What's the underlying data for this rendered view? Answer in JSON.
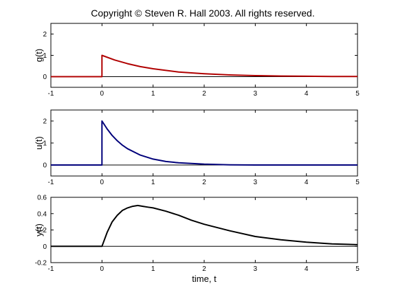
{
  "figure": {
    "title": "Copyright © Steven R. Hall 2003. All rights reserved.",
    "background": "#ffffff"
  },
  "chart_data": [
    {
      "type": "line",
      "ylabel": "g(t)",
      "xlabel": "",
      "xlim": [
        -1,
        5
      ],
      "ylim": [
        -0.5,
        2.5
      ],
      "xticks": [
        -1,
        0,
        1,
        2,
        3,
        4,
        5
      ],
      "yticks": [
        0,
        1,
        2
      ],
      "grid": false,
      "zero_line": true,
      "series": [
        {
          "color": "#b00000",
          "x": [
            -1,
            0,
            0,
            0.25,
            0.5,
            0.75,
            1,
            1.5,
            2,
            2.5,
            3,
            3.5,
            4,
            4.5,
            5
          ],
          "y": [
            0,
            0,
            1,
            0.78,
            0.61,
            0.47,
            0.37,
            0.22,
            0.14,
            0.08,
            0.05,
            0.03,
            0.02,
            0.01,
            0.01
          ]
        }
      ]
    },
    {
      "type": "line",
      "ylabel": "u(t)",
      "xlabel": "",
      "xlim": [
        -1,
        5
      ],
      "ylim": [
        -0.5,
        2.5
      ],
      "xticks": [
        -1,
        0,
        1,
        2,
        3,
        4,
        5
      ],
      "yticks": [
        0,
        1,
        2
      ],
      "grid": false,
      "zero_line": true,
      "series": [
        {
          "color": "#00007a",
          "x": [
            -1,
            0,
            0,
            0.1,
            0.2,
            0.3,
            0.4,
            0.5,
            0.75,
            1,
            1.25,
            1.5,
            2,
            2.5,
            3,
            4,
            5
          ],
          "y": [
            0,
            0,
            2,
            1.64,
            1.34,
            1.1,
            0.9,
            0.74,
            0.45,
            0.27,
            0.16,
            0.1,
            0.04,
            0.01,
            0,
            0,
            0
          ]
        }
      ]
    },
    {
      "type": "line",
      "ylabel": "y(t)",
      "xlabel": "time, t",
      "xlim": [
        -1,
        5
      ],
      "ylim": [
        -0.2,
        0.6
      ],
      "xticks": [
        -1,
        0,
        1,
        2,
        3,
        4,
        5
      ],
      "yticks": [
        -0.2,
        0,
        0.2,
        0.4,
        0.6
      ],
      "grid": false,
      "zero_line": true,
      "series": [
        {
          "color": "#000000",
          "x": [
            -1,
            0,
            0.1,
            0.2,
            0.3,
            0.4,
            0.5,
            0.6,
            0.7,
            0.8,
            0.9,
            1,
            1.25,
            1.5,
            1.75,
            2,
            2.5,
            3,
            3.5,
            4,
            4.5,
            5
          ],
          "y": [
            0,
            0,
            0.17,
            0.3,
            0.38,
            0.44,
            0.47,
            0.49,
            0.5,
            0.49,
            0.48,
            0.47,
            0.43,
            0.38,
            0.32,
            0.27,
            0.19,
            0.12,
            0.08,
            0.05,
            0.03,
            0.02
          ]
        }
      ]
    }
  ]
}
